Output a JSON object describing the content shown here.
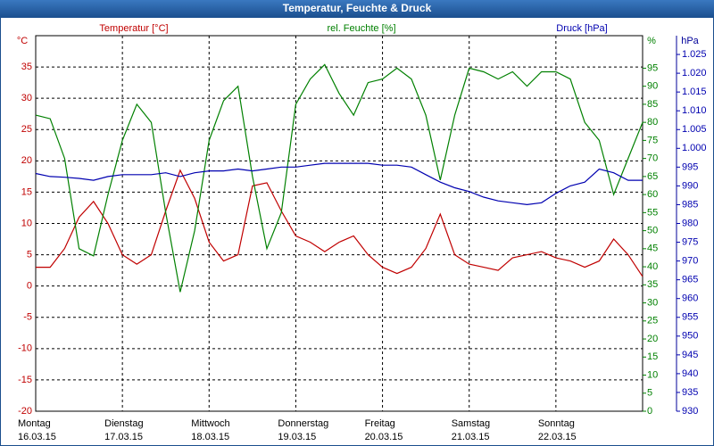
{
  "chart_data": {
    "type": "line",
    "title": "Temperatur, Feuchte & Druck",
    "ylabel": "°C",
    "y2label": "%",
    "y3label": "hPa",
    "x": [
      0,
      4,
      8,
      12,
      16,
      20,
      24,
      28,
      32,
      36,
      40,
      44,
      48,
      52,
      56,
      60,
      64,
      68,
      72,
      76,
      80,
      84,
      88,
      92,
      96,
      100,
      104,
      108,
      112,
      116,
      120,
      124,
      128,
      132,
      136,
      140,
      144,
      148,
      152,
      156,
      160,
      164,
      168
    ],
    "xlim": [
      0,
      168
    ],
    "xticks": [
      {
        "value": 0,
        "label": "Montag",
        "date": "16.03.15"
      },
      {
        "value": 24,
        "label": "Dienstag",
        "date": "17.03.15"
      },
      {
        "value": 48,
        "label": "Mittwoch",
        "date": "18.03.15"
      },
      {
        "value": 72,
        "label": "Donnerstag",
        "date": "19.03.15"
      },
      {
        "value": 96,
        "label": "Freitag",
        "date": "20.03.15"
      },
      {
        "value": 120,
        "label": "Samstag",
        "date": "21.03.15"
      },
      {
        "value": 144,
        "label": "Sonntag",
        "date": "22.03.15"
      }
    ],
    "ylim": [
      -20,
      40
    ],
    "yticks": [
      -20,
      -15,
      -10,
      -5,
      0,
      5,
      10,
      15,
      20,
      25,
      30,
      35
    ],
    "y2lim": [
      0,
      104
    ],
    "y2ticks": [
      0,
      5,
      10,
      15,
      20,
      25,
      30,
      35,
      40,
      45,
      50,
      55,
      60,
      65,
      70,
      75,
      80,
      85,
      90,
      95
    ],
    "y3lim": [
      930,
      1030
    ],
    "y3ticks": [
      930,
      935,
      940,
      945,
      950,
      955,
      960,
      965,
      970,
      975,
      980,
      985,
      990,
      995,
      {
        "value": 1000,
        "label": "1.000"
      },
      {
        "value": 1005,
        "label": "1.005"
      },
      {
        "value": 1010,
        "label": "1.010"
      },
      {
        "value": 1015,
        "label": "1.015"
      },
      {
        "value": 1020,
        "label": "1.020"
      },
      {
        "value": 1025,
        "label": "1.025"
      }
    ],
    "grid": true,
    "series": [
      {
        "name": "Temperatur [°C]",
        "color": "#c00000",
        "axis": "y",
        "values": [
          3,
          3,
          6,
          11,
          13.5,
          10,
          5,
          3.5,
          5,
          12,
          18.5,
          14,
          7,
          4,
          5,
          16,
          16.5,
          12,
          8,
          7,
          5.5,
          7,
          8,
          5,
          3,
          2,
          3,
          6,
          11.5,
          5,
          3.5,
          3,
          2.5,
          4.5,
          5,
          5.5,
          4.5,
          4,
          3,
          4,
          7.5,
          5,
          1.5
        ]
      },
      {
        "name": "rel. Feuchte [%]",
        "color": "#008000",
        "axis": "y2",
        "values": [
          82,
          81,
          70,
          45,
          43,
          60,
          75,
          85,
          80,
          55,
          33,
          50,
          75,
          86,
          90,
          65,
          45,
          55,
          85,
          92,
          96,
          88,
          82,
          91,
          92,
          95,
          92,
          82,
          64,
          82,
          95,
          94,
          92,
          94,
          90,
          94,
          94,
          92,
          80,
          75,
          60,
          70,
          80
        ]
      },
      {
        "name": "Druck [hPa]",
        "color": "#0000b0",
        "axis": "y3",
        "values": [
          993.3,
          992.5,
          992.3,
          992,
          991.5,
          992.5,
          993,
          993,
          993,
          993.5,
          992.5,
          993.5,
          994,
          994,
          994.5,
          994,
          994.5,
          995,
          995,
          995.5,
          996,
          996,
          996,
          996,
          995.5,
          995.5,
          995,
          993,
          991,
          989.5,
          988.5,
          987,
          986,
          985.5,
          985,
          985.5,
          988,
          990,
          991,
          994.5,
          993.5,
          991.5,
          991.5
        ]
      }
    ]
  }
}
